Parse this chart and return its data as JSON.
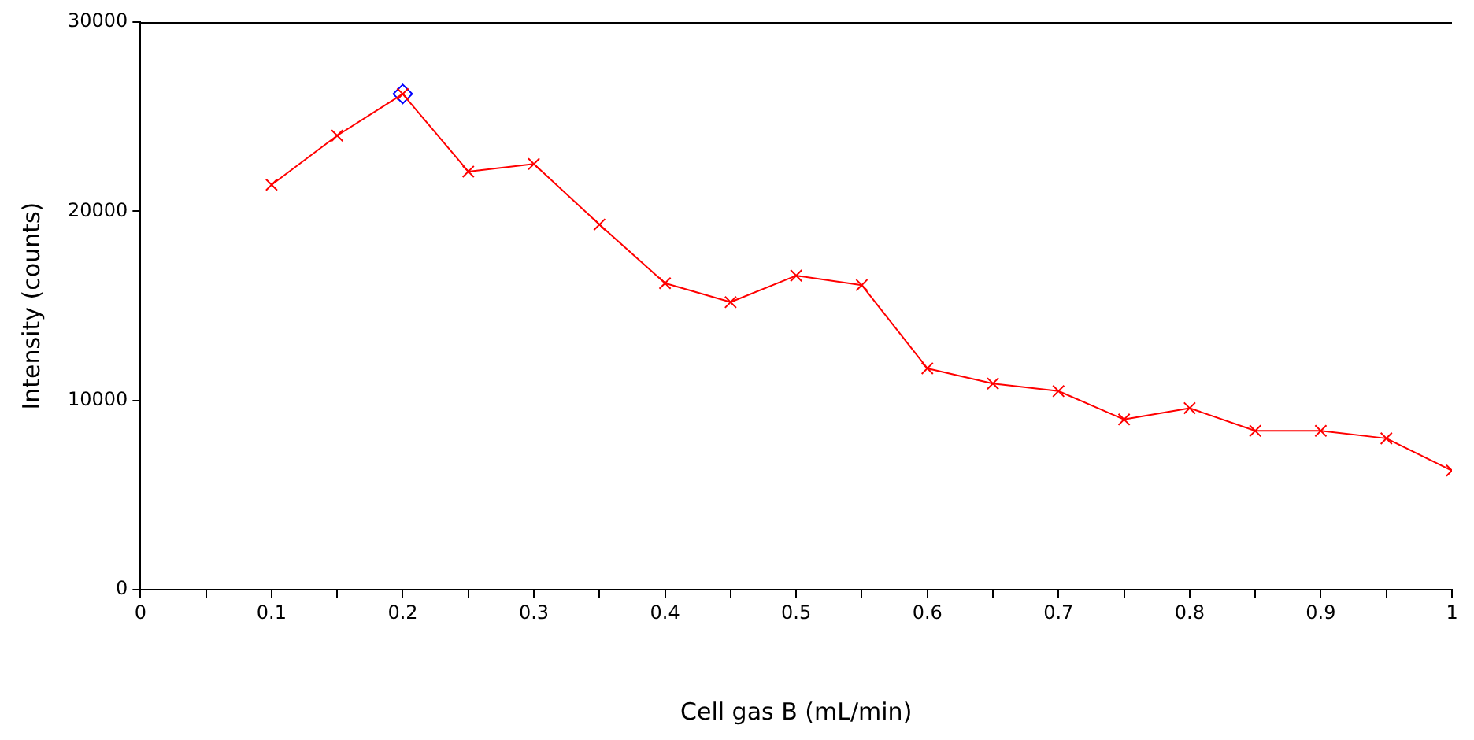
{
  "chart_data": {
    "type": "line",
    "xlabel": "Cell gas B (mL/min)",
    "ylabel": "Intensity (counts)",
    "x": [
      0.1,
      0.15,
      0.2,
      0.25,
      0.3,
      0.35,
      0.4,
      0.45,
      0.5,
      0.55,
      0.6,
      0.65,
      0.7,
      0.75,
      0.8,
      0.85,
      0.9,
      0.95,
      1
    ],
    "series": [
      {
        "color": "#ff0000",
        "marker": "cross",
        "values": [
          21400,
          24000,
          26200,
          22100,
          22500,
          19300,
          16200,
          15200,
          16600,
          16100,
          11700,
          10900,
          10500,
          9000,
          9600,
          8400,
          8400,
          8000,
          6300
        ]
      },
      {
        "type": "scatter",
        "color": "#0000ff",
        "marker": "diamond",
        "x": [
          0.2
        ],
        "values": [
          26200
        ]
      }
    ],
    "xlim": [
      0,
      1
    ],
    "xticks": [
      0,
      {
        "value": 0.05,
        "label": null
      },
      0.1,
      {
        "value": 0.15,
        "label": null
      },
      0.2,
      {
        "value": 0.25,
        "label": null
      },
      0.3,
      {
        "value": 0.35,
        "label": null
      },
      0.4,
      {
        "value": 0.45,
        "label": null
      },
      0.5,
      {
        "value": 0.55,
        "label": null
      },
      0.6,
      {
        "value": 0.65,
        "label": null
      },
      0.7,
      {
        "value": 0.75,
        "label": null
      },
      0.8,
      {
        "value": 0.85,
        "label": null
      },
      0.9,
      {
        "value": 0.95,
        "label": null
      },
      1
    ],
    "ylim": [
      0,
      30000
    ],
    "yticks": [
      0,
      10000,
      20000,
      30000
    ],
    "grid": false,
    "legend": false
  }
}
